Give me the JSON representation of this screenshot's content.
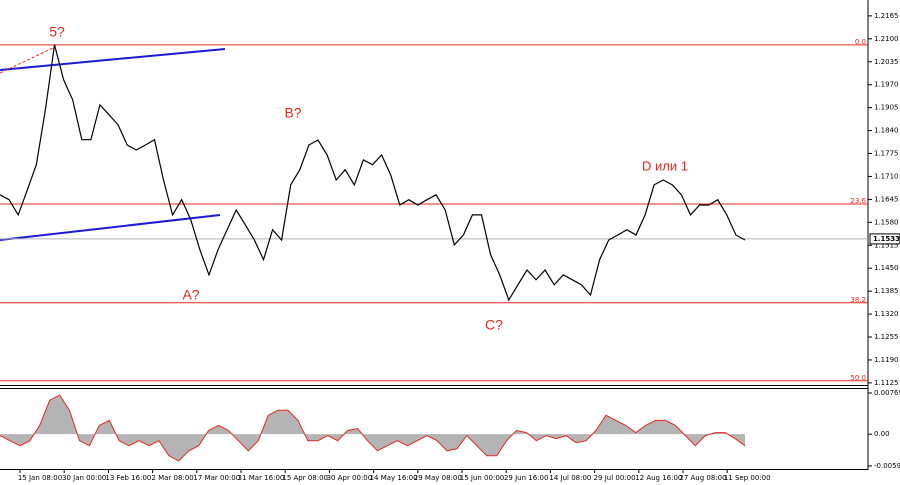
{
  "chart_data": [
    {
      "type": "line",
      "color": "#000000",
      "values": [
        1.1658,
        1.1644,
        1.1601,
        1.1672,
        1.1743,
        1.1899,
        1.2083,
        1.1984,
        1.1927,
        1.1814,
        1.1814,
        1.1913,
        1.1885,
        1.1856,
        1.1799,
        1.1785,
        1.1799,
        1.1814,
        1.17,
        1.1601,
        1.1644,
        1.1587,
        1.1502,
        1.1431,
        1.1502,
        1.1559,
        1.1615,
        1.1573,
        1.153,
        1.1474,
        1.1559,
        1.153,
        1.1686,
        1.1729,
        1.1799,
        1.1813,
        1.1771,
        1.17,
        1.1729,
        1.1686,
        1.1757,
        1.1743,
        1.1771,
        1.1714,
        1.1629,
        1.1644,
        1.1629,
        1.1644,
        1.1658,
        1.1615,
        1.1516,
        1.1544,
        1.1601,
        1.1601,
        1.1488,
        1.1431,
        1.136,
        1.1403,
        1.1445,
        1.1417,
        1.1445,
        1.1403,
        1.1431,
        1.1417,
        1.1403,
        1.1374,
        1.1474,
        1.153,
        1.1544,
        1.1559,
        1.1544,
        1.1601,
        1.1686,
        1.17,
        1.1686,
        1.1658,
        1.1601,
        1.1629,
        1.1629,
        1.1644,
        1.1601,
        1.1544,
        1.153
      ],
      "ylim": [
        1.1119,
        1.221
      ],
      "yticks": [
        {
          "value": 1.2165,
          "label": "1.2165"
        },
        {
          "value": 1.21,
          "label": "1.2100"
        },
        {
          "value": 1.2035,
          "label": "1.2035"
        },
        {
          "value": 1.197,
          "label": "1.1970"
        },
        {
          "value": 1.1905,
          "label": "1.1905"
        },
        {
          "value": 1.184,
          "label": "1.1840"
        },
        {
          "value": 1.1775,
          "label": "1.1775"
        },
        {
          "value": 1.171,
          "label": "1.1710"
        },
        {
          "value": 1.1645,
          "label": "1.1645"
        },
        {
          "value": 1.158,
          "label": "1.1580"
        },
        {
          "value": 1.1515,
          "label": "1.1515"
        },
        {
          "value": 1.145,
          "label": "1.1450"
        },
        {
          "value": 1.1385,
          "label": "1.1385"
        },
        {
          "value": 1.132,
          "label": "1.1320"
        },
        {
          "value": 1.1255,
          "label": "1.1255"
        },
        {
          "value": 1.119,
          "label": "1.1190"
        },
        {
          "value": 1.1125,
          "label": "1.1125"
        }
      ],
      "current_price": {
        "value": 1.1533,
        "label": "1.1533"
      },
      "levels": [
        {
          "label": "0.0",
          "price": 1.2083
        },
        {
          "label": "23.6",
          "price": 1.1632
        },
        {
          "label": "38.2",
          "price": 1.1352
        },
        {
          "label": "50.0",
          "price": 1.1131
        }
      ],
      "level_color": "#e8261c",
      "annotations": [
        "5?",
        "B?",
        "A?",
        "C?",
        "D или 1"
      ],
      "xlabels": [
        "15 Jan 08:00",
        "30 Jan 00:00",
        "13 Feb 16:00",
        "2 Mar 08:00",
        "17 Mar 00:00",
        "31 Mar 16:00",
        "15 Apr 08:00",
        "30 Apr 00:00",
        "14 May 16:00",
        "29 May 08:00",
        "15 Jun 00:00",
        "29 Jun 16:00",
        "14 Jul 08:00",
        "29 Jul 00:00",
        "12 Aug 16:00",
        "27 Aug 08:00",
        "11 Sep 00:00"
      ]
    },
    {
      "type": "area",
      "color": "#e8261c",
      "fill": "#b4b4b4",
      "values": [
        -0.00026,
        -0.00121,
        -0.00215,
        -0.00121,
        0.00163,
        0.00635,
        0.00729,
        0.00446,
        -0.00121,
        -0.00215,
        0.00163,
        0.00257,
        -0.00121,
        -0.00215,
        -0.00121,
        -0.00215,
        -0.00121,
        -0.00404,
        -0.00499,
        -0.0031,
        -0.00215,
        0.00068,
        0.00163,
        0.00068,
        -0.00121,
        -0.0031,
        -0.00121,
        0.00352,
        0.00446,
        0.00446,
        0.00257,
        -0.00121,
        -0.00121,
        -0.00026,
        -0.00121,
        0.00068,
        0.00106,
        -0.00121,
        -0.0031,
        -0.00215,
        -0.00121,
        -0.00215,
        -0.00121,
        -0.00026,
        -0.00121,
        -0.0031,
        -0.00272,
        -0.00026,
        -0.00215,
        -0.00404,
        -0.00404,
        -0.00121,
        0.00068,
        0.0003,
        -0.00121,
        -0.00026,
        -0.00083,
        -0.00026,
        -0.00159,
        -0.00121,
        0.00068,
        0.00352,
        0.00257,
        0.00163,
        0.0003,
        0.00163,
        0.00257,
        0.00257,
        0.00163,
        -0.00026,
        -0.00215,
        -0.00026,
        0.0003,
        0.0003,
        -0.00083,
        -0.00215
      ],
      "ylim": [
        -0.0065,
        0.00862
      ],
      "yticks": [
        0.00769,
        {
          "value": 0,
          "label": "0.00"
        },
        -0.00593
      ]
    }
  ]
}
